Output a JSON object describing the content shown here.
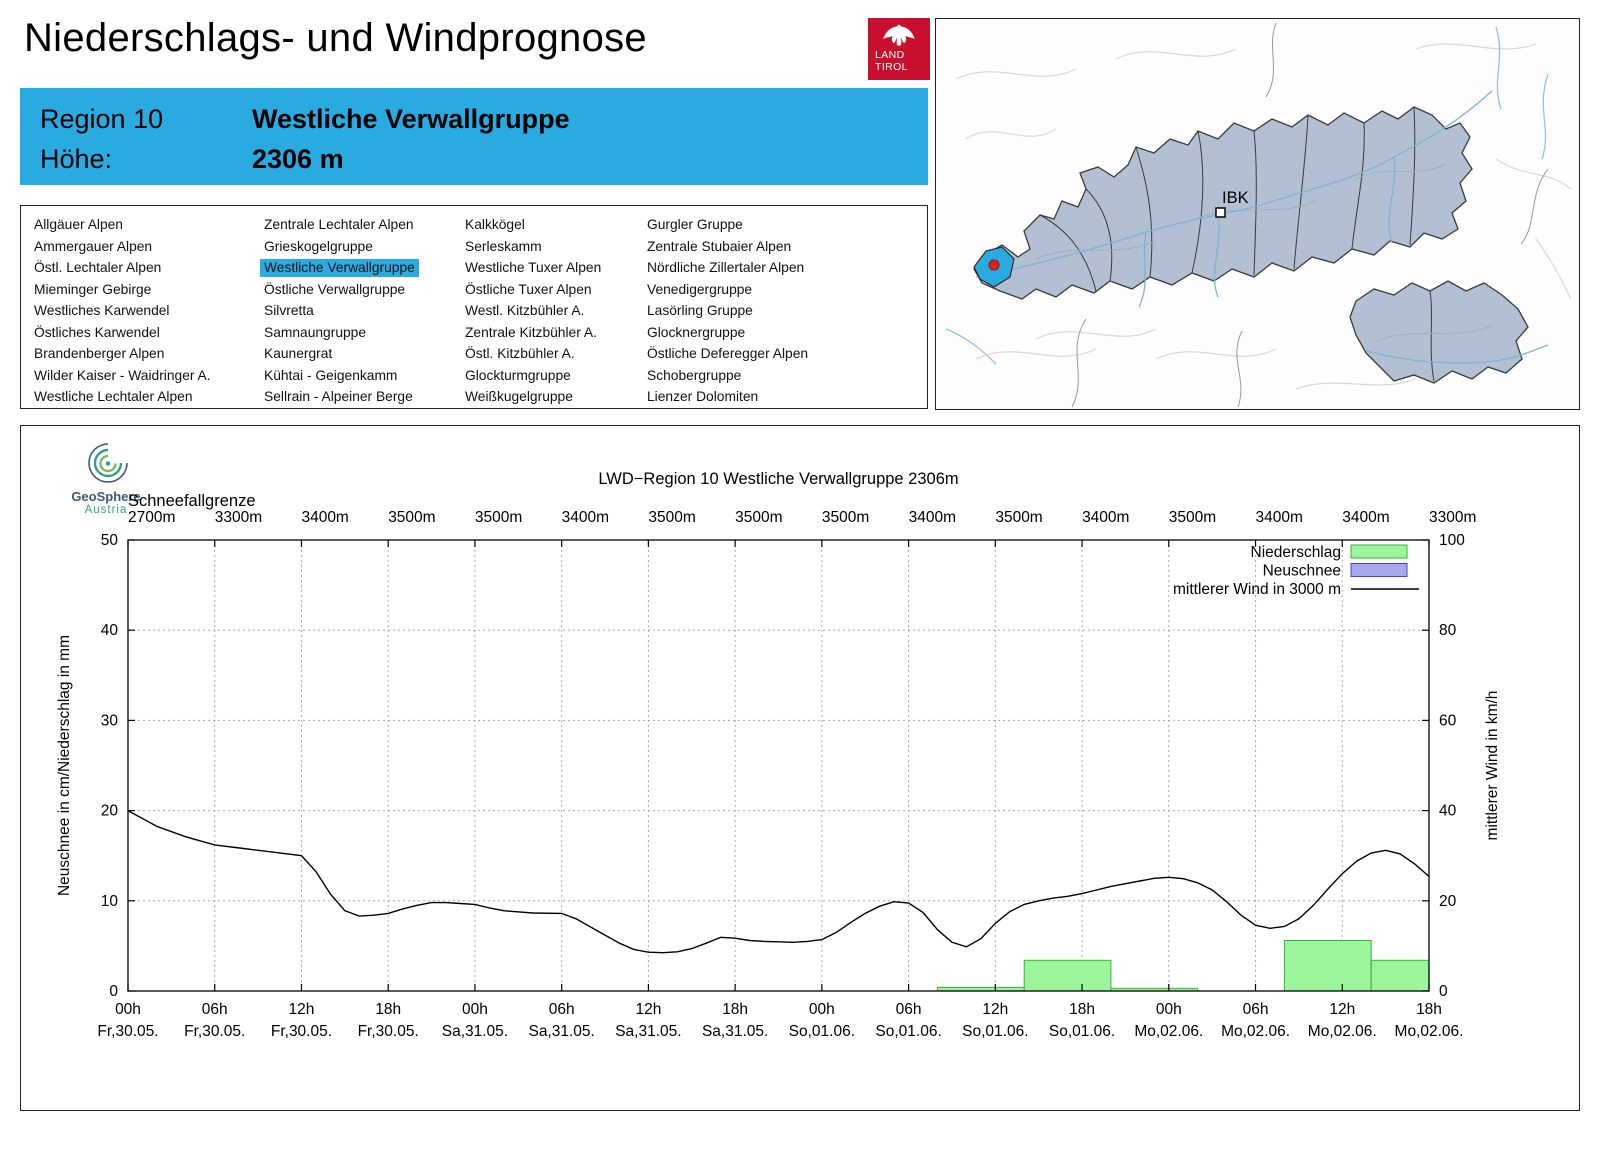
{
  "page": {
    "title": "Niederschlags- und Windprognose"
  },
  "logo": {
    "line1": "LAND",
    "line2": "TIROL",
    "background": "#c8102e"
  },
  "region_header": {
    "region_label": "Region 10",
    "region_name": "Westliche Verwallgruppe",
    "altitude_label": "Höhe:",
    "altitude_value": "2306 m",
    "background": "#29abe2"
  },
  "region_list": {
    "highlighted": "Westliche Verwallgruppe",
    "columns": [
      [
        "Allgäuer Alpen",
        "Ammergauer Alpen",
        "Östl. Lechtaler Alpen",
        "Mieminger Gebirge",
        "Westliches Karwendel",
        "Östliches Karwendel",
        "Brandenberger Alpen",
        "Wilder Kaiser - Waidringer A.",
        "Westliche Lechtaler Alpen"
      ],
      [
        "Zentrale Lechtaler Alpen",
        "Grieskogelgruppe",
        "Westliche Verwallgruppe",
        "Östliche Verwallgruppe",
        "Silvretta",
        "Samnaungruppe",
        "Kaunergrat",
        "Kühtai - Geigenkamm",
        "Sellrain - Alpeiner Berge"
      ],
      [
        "Kalkkögel",
        "Serleskamm",
        "Westliche Tuxer Alpen",
        "Östliche Tuxer Alpen",
        "Westl. Kitzbühler A.",
        "Zentrale Kitzbühler A.",
        "Östl. Kitzbühler A.",
        "Glockturmgruppe",
        "Weißkugelgruppe"
      ],
      [
        "Gurgler Gruppe",
        "Zentrale Stubaier Alpen",
        "Nördliche Zillertaler Alpen",
        "Venedigergruppe",
        "Lasörling Gruppe",
        "Glocknergruppe",
        "Östliche Deferegger Alpen",
        "Schobergruppe",
        "Lienzer Dolomiten"
      ]
    ]
  },
  "map": {
    "city_label": "IBK",
    "highlight_color": "#29abe2",
    "marker_color": "#e32219",
    "region_fill": "#b3c0d3"
  },
  "geosphere": {
    "name": "GeoSphere",
    "country": "Austria"
  },
  "chart_data": {
    "type": "line+bar",
    "title": "LWD−Region 10 Westliche Verwallgruppe 2306m",
    "ylabel_left": "Neuschnee in cm/Niederschlag in mm",
    "ylabel_right": "mittlerer Wind in km/h",
    "ylim_left": [
      0,
      50
    ],
    "ylim_right": [
      0,
      100
    ],
    "yticks_left": [
      0,
      10,
      20,
      30,
      40,
      50
    ],
    "yticks_right": [
      0,
      20,
      40,
      60,
      80,
      100
    ],
    "x_hours_max": 90,
    "snowline_label": "Schneefallgrenze",
    "snowline_values": [
      "2700m",
      "3300m",
      "3400m",
      "3500m",
      "3500m",
      "3400m",
      "3500m",
      "3500m",
      "3500m",
      "3400m",
      "3500m",
      "3400m",
      "3500m",
      "3400m",
      "3400m",
      "3300m"
    ],
    "x_ticks": [
      {
        "hour": 0,
        "hour_label": "00h",
        "day_label": "Fr,30.05."
      },
      {
        "hour": 6,
        "hour_label": "06h",
        "day_label": "Fr,30.05."
      },
      {
        "hour": 12,
        "hour_label": "12h",
        "day_label": "Fr,30.05."
      },
      {
        "hour": 18,
        "hour_label": "18h",
        "day_label": "Fr,30.05."
      },
      {
        "hour": 24,
        "hour_label": "00h",
        "day_label": "Sa,31.05."
      },
      {
        "hour": 30,
        "hour_label": "06h",
        "day_label": "Sa,31.05."
      },
      {
        "hour": 36,
        "hour_label": "12h",
        "day_label": "Sa,31.05."
      },
      {
        "hour": 42,
        "hour_label": "18h",
        "day_label": "Sa,31.05."
      },
      {
        "hour": 48,
        "hour_label": "00h",
        "day_label": "So,01.06."
      },
      {
        "hour": 54,
        "hour_label": "06h",
        "day_label": "So,01.06."
      },
      {
        "hour": 60,
        "hour_label": "12h",
        "day_label": "So,01.06."
      },
      {
        "hour": 66,
        "hour_label": "18h",
        "day_label": "So,01.06."
      },
      {
        "hour": 72,
        "hour_label": "00h",
        "day_label": "Mo,02.06."
      },
      {
        "hour": 78,
        "hour_label": "06h",
        "day_label": "Mo,02.06."
      },
      {
        "hour": 84,
        "hour_label": "12h",
        "day_label": "Mo,02.06."
      },
      {
        "hour": 90,
        "hour_label": "18h",
        "day_label": "Mo,02.06."
      }
    ],
    "legend": [
      {
        "label": "Niederschlag",
        "type": "box",
        "fill": "#9bf59b",
        "stroke": "#3db03d"
      },
      {
        "label": "Neuschnee",
        "type": "box",
        "fill": "#a8a8f0",
        "stroke": "#4444cc"
      },
      {
        "label": "mittlerer Wind in 3000 m",
        "type": "line",
        "stroke": "#000000"
      }
    ],
    "precip_bars_mm": [
      {
        "start_hour": 56,
        "end_hour": 62,
        "value": 0.4
      },
      {
        "start_hour": 62,
        "end_hour": 68,
        "value": 3.4
      },
      {
        "start_hour": 68,
        "end_hour": 74,
        "value": 0.3
      },
      {
        "start_hour": 80,
        "end_hour": 86,
        "value": 5.6
      },
      {
        "start_hour": 86,
        "end_hour": 90,
        "value": 3.4
      }
    ],
    "neuschnee_bars_cm": [],
    "wind_line_kmh": {
      "points": [
        [
          0,
          40
        ],
        [
          2,
          36.5
        ],
        [
          4,
          34.2
        ],
        [
          6,
          32.4
        ],
        [
          8,
          31.6
        ],
        [
          10,
          30.8
        ],
        [
          12,
          30
        ],
        [
          13,
          26.5
        ],
        [
          14,
          21.5
        ],
        [
          15,
          17.8
        ],
        [
          16,
          16.6
        ],
        [
          17,
          16.8
        ],
        [
          18,
          17.2
        ],
        [
          19,
          18.2
        ],
        [
          20,
          19
        ],
        [
          21,
          19.6
        ],
        [
          22,
          19.6
        ],
        [
          23,
          19.4
        ],
        [
          24,
          19.2
        ],
        [
          25,
          18.4
        ],
        [
          26,
          17.8
        ],
        [
          28,
          17.3
        ],
        [
          30,
          17.2
        ],
        [
          31,
          16
        ],
        [
          32,
          14.2
        ],
        [
          33,
          12.4
        ],
        [
          34,
          10.6
        ],
        [
          35,
          9.2
        ],
        [
          36,
          8.6
        ],
        [
          37,
          8.5
        ],
        [
          38,
          8.7
        ],
        [
          39,
          9.4
        ],
        [
          40,
          10.6
        ],
        [
          41,
          11.9
        ],
        [
          42,
          11.7
        ],
        [
          43,
          11.2
        ],
        [
          44,
          11
        ],
        [
          45,
          10.9
        ],
        [
          46,
          10.8
        ],
        [
          47,
          11
        ],
        [
          48,
          11.4
        ],
        [
          49,
          13
        ],
        [
          50,
          15.2
        ],
        [
          51,
          17.2
        ],
        [
          52,
          18.8
        ],
        [
          53,
          19.8
        ],
        [
          54,
          19.5
        ],
        [
          55,
          17.4
        ],
        [
          56,
          13.6
        ],
        [
          57,
          10.8
        ],
        [
          58,
          9.8
        ],
        [
          59,
          11.6
        ],
        [
          60,
          15
        ],
        [
          61,
          17.6
        ],
        [
          62,
          19.2
        ],
        [
          63,
          20
        ],
        [
          64,
          20.6
        ],
        [
          65,
          21
        ],
        [
          66,
          21.6
        ],
        [
          67,
          22.4
        ],
        [
          68,
          23.2
        ],
        [
          69,
          23.8
        ],
        [
          70,
          24.4
        ],
        [
          71,
          25
        ],
        [
          72,
          25.2
        ],
        [
          73,
          24.9
        ],
        [
          74,
          24
        ],
        [
          75,
          22.4
        ],
        [
          76,
          19.8
        ],
        [
          77,
          16.8
        ],
        [
          78,
          14.6
        ],
        [
          79,
          13.9
        ],
        [
          80,
          14.3
        ],
        [
          81,
          16
        ],
        [
          82,
          19
        ],
        [
          83,
          22.6
        ],
        [
          84,
          26
        ],
        [
          85,
          28.8
        ],
        [
          86,
          30.6
        ],
        [
          87,
          31.2
        ],
        [
          88,
          30.4
        ],
        [
          89,
          28.2
        ],
        [
          90,
          25.4
        ]
      ]
    }
  }
}
